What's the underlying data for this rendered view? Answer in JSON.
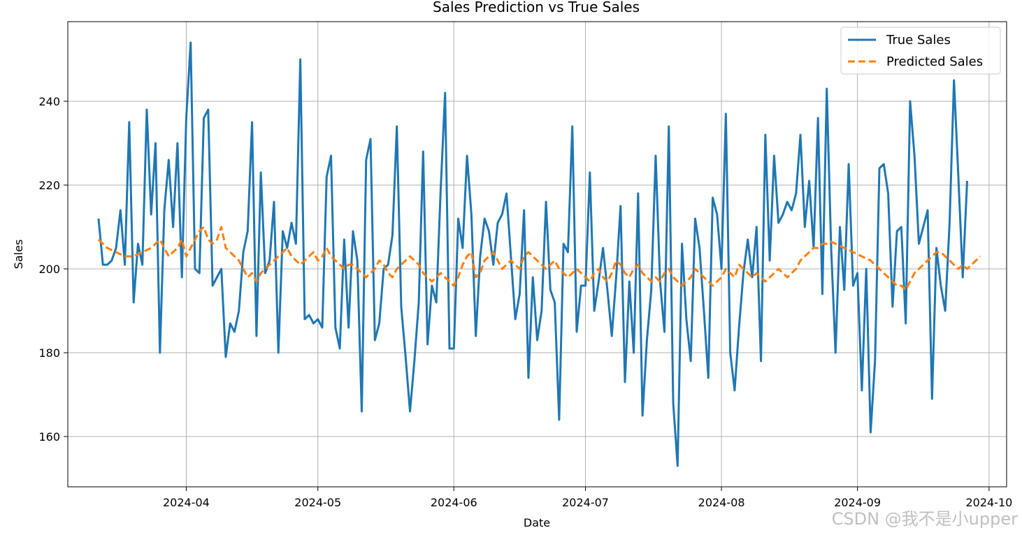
{
  "chart_data": {
    "type": "line",
    "title": "Sales Prediction vs True Sales",
    "xlabel": "Date",
    "ylabel": "Sales",
    "x_start": "2024-03-12",
    "x_step": "1 day",
    "xlim": [
      "2024-03-05",
      "2024-10-05"
    ],
    "ylim": [
      148,
      259
    ],
    "grid": true,
    "legend_position": "top-right",
    "x_ticks": [
      {
        "label": "2024-04",
        "date": "2024-04-01"
      },
      {
        "label": "2024-05",
        "date": "2024-05-01"
      },
      {
        "label": "2024-06",
        "date": "2024-06-01"
      },
      {
        "label": "2024-07",
        "date": "2024-07-01"
      },
      {
        "label": "2024-08",
        "date": "2024-08-01"
      },
      {
        "label": "2024-09",
        "date": "2024-09-01"
      },
      {
        "label": "2024-10",
        "date": "2024-10-01"
      }
    ],
    "y_ticks": [
      {
        "label": "160",
        "value": 160
      },
      {
        "label": "180",
        "value": 180
      },
      {
        "label": "200",
        "value": 200
      },
      {
        "label": "220",
        "value": 220
      },
      {
        "label": "240",
        "value": 240
      }
    ],
    "series": [
      {
        "name": "True Sales",
        "color": "#1f77b4",
        "style": "solid",
        "values": [
          212,
          201,
          201,
          202,
          205,
          214,
          201,
          235,
          192,
          206,
          201,
          238,
          213,
          230,
          180,
          214,
          226,
          210,
          230,
          198,
          236,
          254,
          200,
          199,
          236,
          238,
          196,
          198,
          200,
          179,
          187,
          185,
          190,
          204,
          209,
          235,
          184,
          223,
          199,
          202,
          216,
          180,
          209,
          205,
          211,
          206,
          250,
          188,
          189,
          187,
          188,
          186,
          222,
          227,
          186,
          181,
          207,
          186,
          209,
          202,
          166,
          226,
          231,
          183,
          187,
          200,
          201,
          208,
          234,
          191,
          179,
          166,
          178,
          192,
          228,
          182,
          196,
          192,
          219,
          242,
          181,
          181,
          212,
          205,
          227,
          213,
          184,
          203,
          212,
          209,
          201,
          211,
          213,
          218,
          203,
          188,
          194,
          214,
          174,
          198,
          183,
          190,
          216,
          195,
          192,
          164,
          206,
          204,
          234,
          185,
          196,
          196,
          223,
          190,
          197,
          205,
          195,
          184,
          198,
          215,
          173,
          197,
          180,
          218,
          165,
          183,
          195,
          227,
          197,
          185,
          234,
          168,
          153,
          206,
          188,
          178,
          212,
          205,
          190,
          174,
          217,
          213,
          200,
          237,
          180,
          171,
          186,
          199,
          207,
          198,
          210,
          178,
          232,
          202,
          227,
          211,
          213,
          216,
          214,
          218,
          232,
          210,
          221,
          205,
          236,
          194,
          243,
          205,
          180,
          210,
          195,
          225,
          196,
          199,
          171,
          200,
          161,
          178,
          224,
          225,
          218,
          191,
          209,
          210,
          187,
          240,
          227,
          206,
          210,
          214,
          169,
          205,
          196,
          190,
          211,
          245,
          222,
          198,
          221
        ]
      },
      {
        "name": "Predicted Sales",
        "color": "#ff7f0e",
        "style": "dashed",
        "values": [
          207,
          206,
          205,
          204.5,
          204,
          203.5,
          203,
          203,
          203,
          203.5,
          204,
          204.5,
          205,
          206,
          207,
          205,
          203,
          204,
          205,
          207,
          203,
          205,
          207,
          209,
          210,
          207,
          206,
          207,
          210,
          205,
          204,
          203,
          202,
          200,
          198,
          199,
          197,
          199,
          200,
          201,
          202,
          203,
          204,
          205,
          203,
          202,
          201,
          202,
          203,
          204,
          202,
          203,
          205,
          203,
          202,
          201,
          200,
          201,
          201,
          200,
          199,
          198,
          199,
          200,
          202,
          201,
          199,
          198,
          200,
          201,
          202,
          203,
          202,
          201,
          199,
          198,
          197,
          198,
          199,
          198,
          197,
          196,
          198,
          201,
          203,
          204,
          198,
          199,
          202,
          203,
          204,
          202,
          200,
          201,
          202,
          201,
          200,
          203,
          204,
          203,
          202,
          201,
          200,
          201,
          202,
          200,
          199,
          198,
          199,
          200,
          199,
          198,
          197,
          199,
          200,
          198,
          197,
          199,
          202,
          201,
          199,
          198,
          200,
          201,
          199,
          198,
          197,
          198,
          197,
          199,
          200,
          198,
          197,
          196,
          197,
          198,
          200,
          199,
          198,
          197,
          196,
          197,
          198,
          200,
          199,
          198,
          201,
          200,
          199,
          198,
          199,
          198,
          197,
          198,
          199,
          200,
          199,
          198,
          199,
          200,
          202,
          203,
          204,
          205,
          205,
          206,
          206,
          206.5,
          206,
          205.5,
          205,
          204.5,
          204,
          203.5,
          203,
          202.5,
          202,
          201,
          200,
          199,
          198,
          197,
          196,
          196,
          195,
          197,
          199,
          200,
          201,
          202,
          203,
          204,
          204,
          203,
          202,
          201,
          200,
          201,
          200,
          201,
          202,
          203
        ]
      }
    ]
  },
  "watermark": "CSDN @我不是小upper"
}
